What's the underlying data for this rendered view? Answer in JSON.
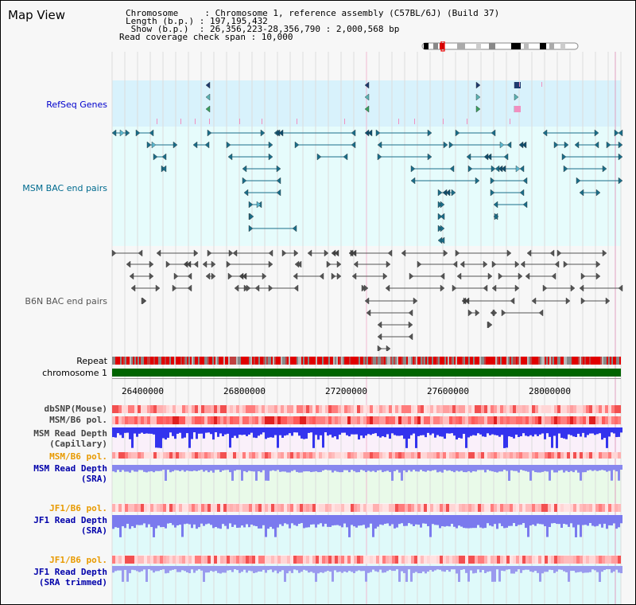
{
  "page": {
    "title": "Map View"
  },
  "header": {
    "line1": "Chromosome     : Chromosome 1, reference assembly (C57BL/6J) (Build 37)",
    "line2": "Length (b.p.) : 197,195,432",
    "line3": " Show (b.p.)  : 26,356,223-28,356,790 : 2,000,568 bp",
    "line4": "Read coverage check span : 10,000"
  },
  "tracks": {
    "refseq": "RefSeq Genes",
    "msm_bac": "MSM BAC end pairs",
    "b6n_bac": "B6N BAC end pairs",
    "repeat": "Repeat",
    "chromosome": "chromosome 1",
    "dbsnp": "dbSNP(Mouse)",
    "msm_b6_pol": "MSM/B6 pol.",
    "msm_read_depth_cap_1": "MSM Read Depth",
    "msm_read_depth_cap_2": "(Capillary)",
    "msm_b6_pol_2": "MSM/B6 pol.",
    "msm_read_depth_sra_1": "MSM Read Depth",
    "msm_read_depth_sra_2": "(SRA)",
    "jf1_b6_pol": "JF1/B6 pol.",
    "jf1_read_depth_1": "JF1 Read Depth",
    "jf1_read_depth_2": "(SRA)",
    "jf1_b6_pol_2": "JF1/B6 pol.",
    "jf1_read_depth_trim_1": "JF1 Read Depth",
    "jf1_read_depth_trim_2": "(SRA trimmed)"
  },
  "axis": {
    "ticks": [
      "26400000",
      "26800000",
      "27200000",
      "27600000",
      "28000000"
    ]
  },
  "colors": {
    "refseq_label": "#0000cc",
    "msm_label": "#006b8f",
    "b6n_label": "#555555",
    "pol_label": "#e89a00",
    "depth_label": "#0000aa",
    "refseq_bg": "#d8f2fc",
    "msm_bg": "#e6fcfc",
    "chromosome": "#006400",
    "repeat_red": "#e00000",
    "depth_blue": "#3333ee",
    "depth_sra": "#8888ee"
  }
}
